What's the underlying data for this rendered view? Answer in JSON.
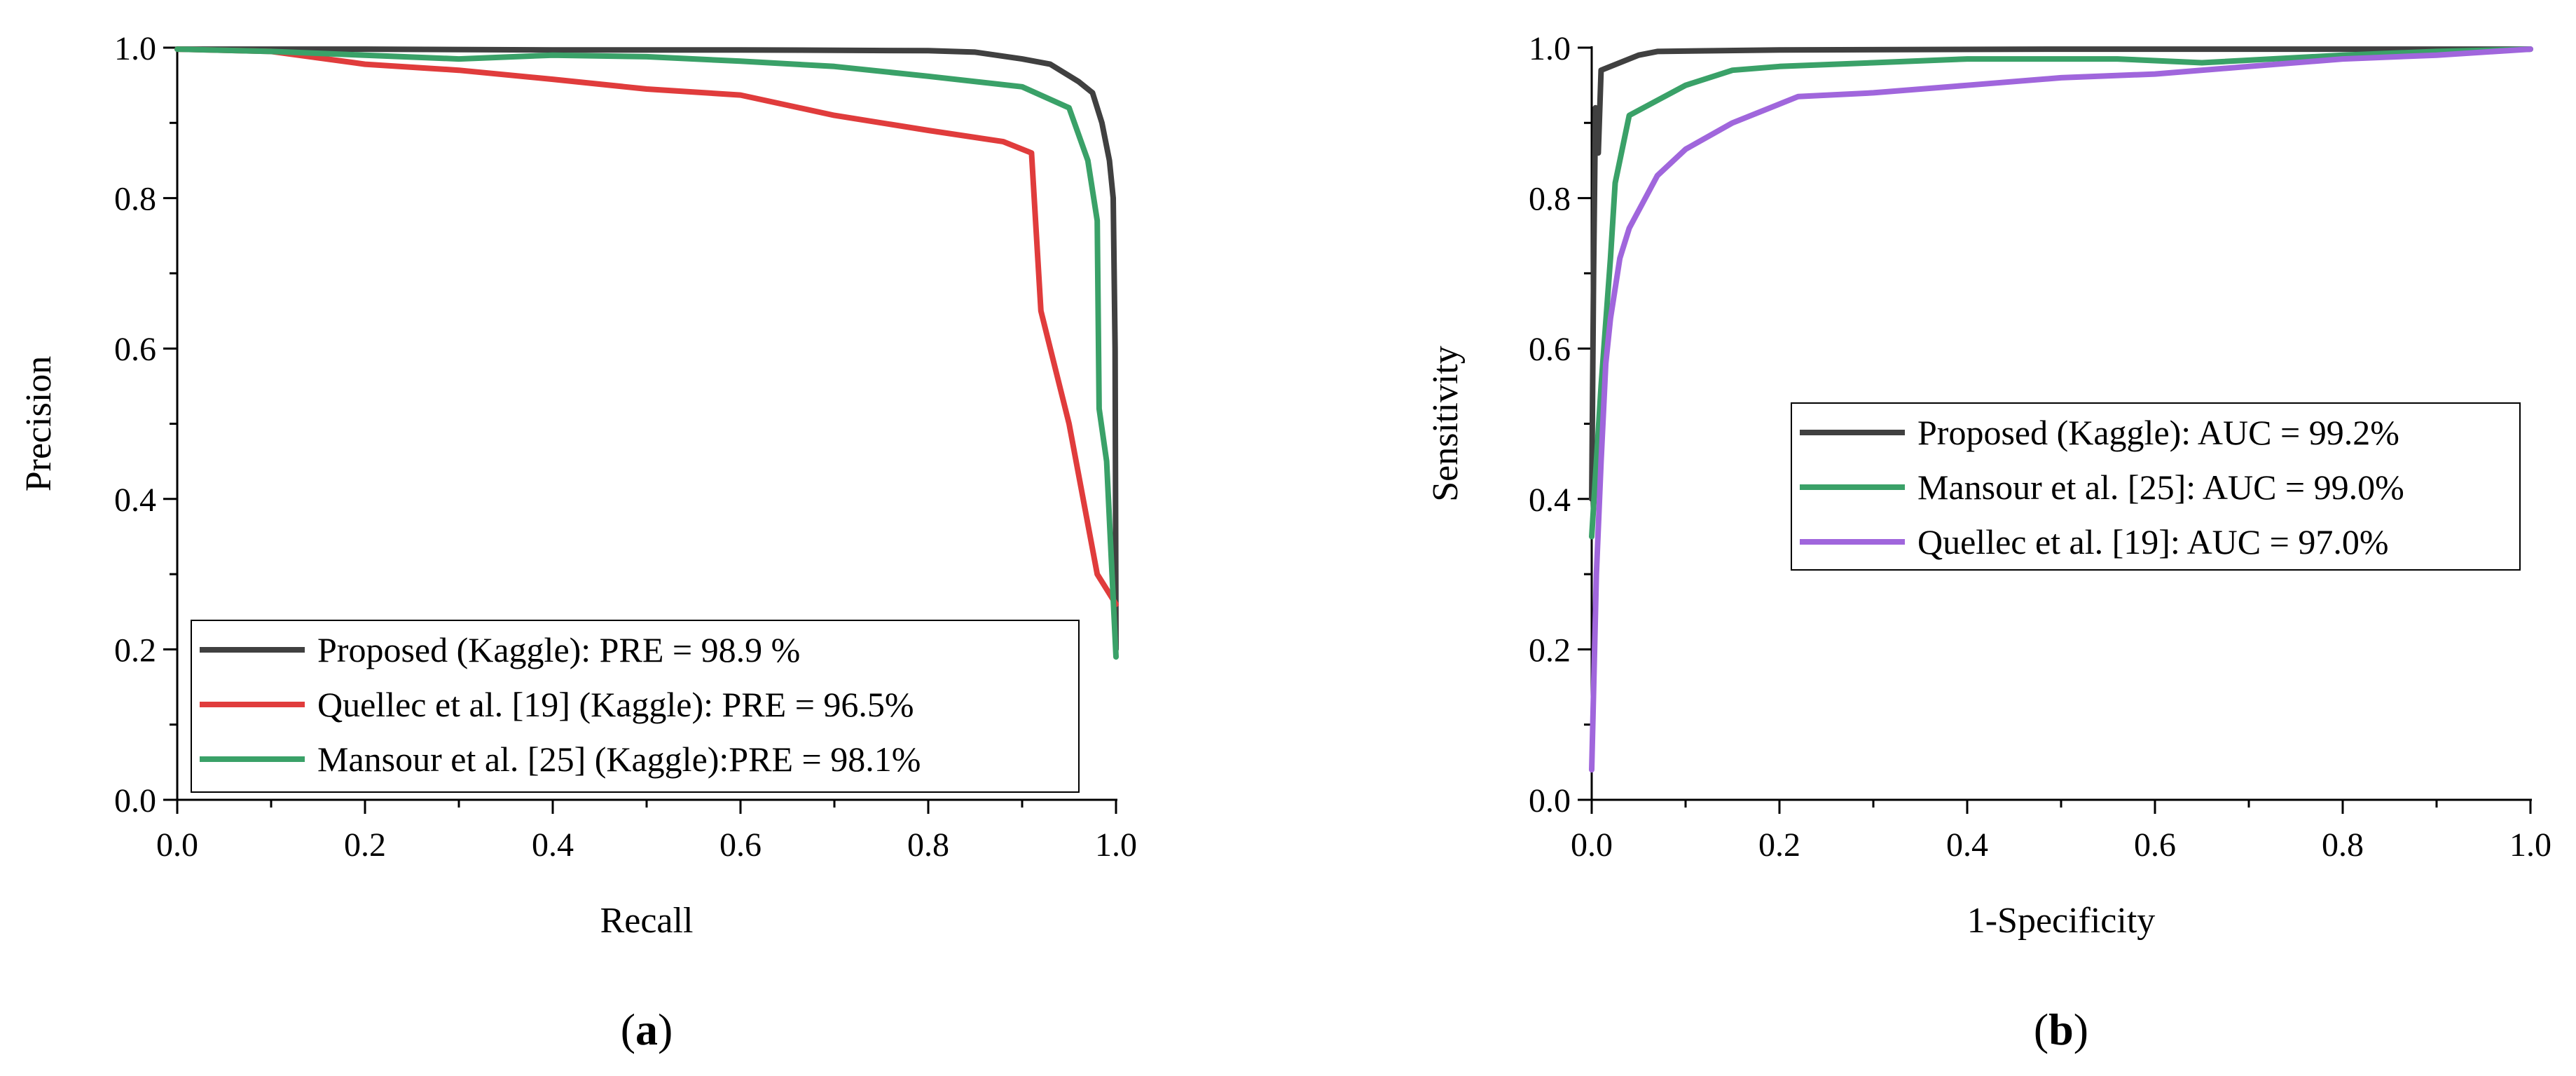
{
  "chart_data": [
    {
      "panel_label": "a",
      "type": "line",
      "title": "",
      "xlabel": "Recall",
      "ylabel": "Precision",
      "xlim": [
        0,
        1
      ],
      "ylim": [
        0,
        1
      ],
      "xticks": [
        "0.0",
        "0.2",
        "0.4",
        "0.6",
        "0.8",
        "1.0"
      ],
      "yticks": [
        "0.0",
        "0.2",
        "0.4",
        "0.6",
        "0.8",
        "1.0"
      ],
      "grid": false,
      "legend_position": "bottom-left",
      "series": [
        {
          "name": "Proposed (Kaggle): PRE = 98.9 %",
          "color": "#404040",
          "points": [
            [
              0,
              0.998
            ],
            [
              0.2,
              0.998
            ],
            [
              0.4,
              0.997
            ],
            [
              0.6,
              0.997
            ],
            [
              0.8,
              0.996
            ],
            [
              0.85,
              0.994
            ],
            [
              0.9,
              0.985
            ],
            [
              0.93,
              0.978
            ],
            [
              0.96,
              0.955
            ],
            [
              0.975,
              0.94
            ],
            [
              0.985,
              0.9
            ],
            [
              0.993,
              0.85
            ],
            [
              0.997,
              0.8
            ],
            [
              0.999,
              0.6
            ],
            [
              1.0,
              0.2
            ]
          ]
        },
        {
          "name": "Quellec et al. [19] (Kaggle): PRE = 96.5%",
          "color": "#e03c3c",
          "points": [
            [
              0,
              0.998
            ],
            [
              0.1,
              0.995
            ],
            [
              0.2,
              0.978
            ],
            [
              0.3,
              0.97
            ],
            [
              0.4,
              0.958
            ],
            [
              0.5,
              0.945
            ],
            [
              0.6,
              0.937
            ],
            [
              0.7,
              0.91
            ],
            [
              0.8,
              0.89
            ],
            [
              0.88,
              0.875
            ],
            [
              0.91,
              0.86
            ],
            [
              0.92,
              0.65
            ],
            [
              0.95,
              0.5
            ],
            [
              0.98,
              0.3
            ],
            [
              1.0,
              0.26
            ]
          ]
        },
        {
          "name": "Mansour et al. [25] (Kaggle):PRE = 98.1%",
          "color": "#3aa168",
          "points": [
            [
              0,
              0.998
            ],
            [
              0.1,
              0.995
            ],
            [
              0.2,
              0.99
            ],
            [
              0.3,
              0.985
            ],
            [
              0.4,
              0.99
            ],
            [
              0.5,
              0.988
            ],
            [
              0.6,
              0.982
            ],
            [
              0.7,
              0.975
            ],
            [
              0.8,
              0.962
            ],
            [
              0.9,
              0.948
            ],
            [
              0.95,
              0.92
            ],
            [
              0.97,
              0.85
            ],
            [
              0.98,
              0.77
            ],
            [
              0.982,
              0.52
            ],
            [
              0.99,
              0.45
            ],
            [
              1.0,
              0.19
            ]
          ]
        }
      ]
    },
    {
      "panel_label": "b",
      "type": "line",
      "title": "",
      "xlabel": "1-Specificity",
      "ylabel": "Sensitivity",
      "xlim": [
        0,
        1
      ],
      "ylim": [
        0,
        1
      ],
      "xticks": [
        "0.0",
        "0.2",
        "0.4",
        "0.6",
        "0.8",
        "1.0"
      ],
      "yticks": [
        "0.0",
        "0.2",
        "0.4",
        "0.6",
        "0.8",
        "1.0"
      ],
      "grid": false,
      "legend_position": "center-right",
      "series": [
        {
          "name": "Proposed (Kaggle): AUC = 99.2%",
          "color": "#404040",
          "points": [
            [
              0,
              0.4
            ],
            [
              0.002,
              0.7
            ],
            [
              0.004,
              0.92
            ],
            [
              0.007,
              0.86
            ],
            [
              0.01,
              0.97
            ],
            [
              0.05,
              0.99
            ],
            [
              0.07,
              0.995
            ],
            [
              0.2,
              0.997
            ],
            [
              0.5,
              0.998
            ],
            [
              0.8,
              0.998
            ],
            [
              1.0,
              0.998
            ]
          ]
        },
        {
          "name": "Mansour et al. [25]: AUC = 99.0%",
          "color": "#3aa168",
          "points": [
            [
              0,
              0.35
            ],
            [
              0.01,
              0.55
            ],
            [
              0.02,
              0.72
            ],
            [
              0.025,
              0.82
            ],
            [
              0.04,
              0.91
            ],
            [
              0.07,
              0.93
            ],
            [
              0.1,
              0.95
            ],
            [
              0.15,
              0.97
            ],
            [
              0.2,
              0.975
            ],
            [
              0.3,
              0.98
            ],
            [
              0.4,
              0.985
            ],
            [
              0.5,
              0.985
            ],
            [
              0.56,
              0.985
            ],
            [
              0.65,
              0.98
            ],
            [
              0.8,
              0.99
            ],
            [
              0.9,
              0.995
            ],
            [
              1.0,
              0.998
            ]
          ]
        },
        {
          "name": "Quellec et al. [19]: AUC = 97.0%",
          "color": "#a066dc",
          "points": [
            [
              0,
              0.04
            ],
            [
              0.005,
              0.3
            ],
            [
              0.01,
              0.45
            ],
            [
              0.015,
              0.58
            ],
            [
              0.02,
              0.64
            ],
            [
              0.03,
              0.72
            ],
            [
              0.04,
              0.76
            ],
            [
              0.07,
              0.83
            ],
            [
              0.1,
              0.865
            ],
            [
              0.15,
              0.9
            ],
            [
              0.22,
              0.935
            ],
            [
              0.3,
              0.94
            ],
            [
              0.4,
              0.95
            ],
            [
              0.5,
              0.96
            ],
            [
              0.6,
              0.965
            ],
            [
              0.7,
              0.975
            ],
            [
              0.8,
              0.985
            ],
            [
              0.9,
              0.99
            ],
            [
              1.0,
              0.998
            ]
          ]
        }
      ]
    }
  ]
}
